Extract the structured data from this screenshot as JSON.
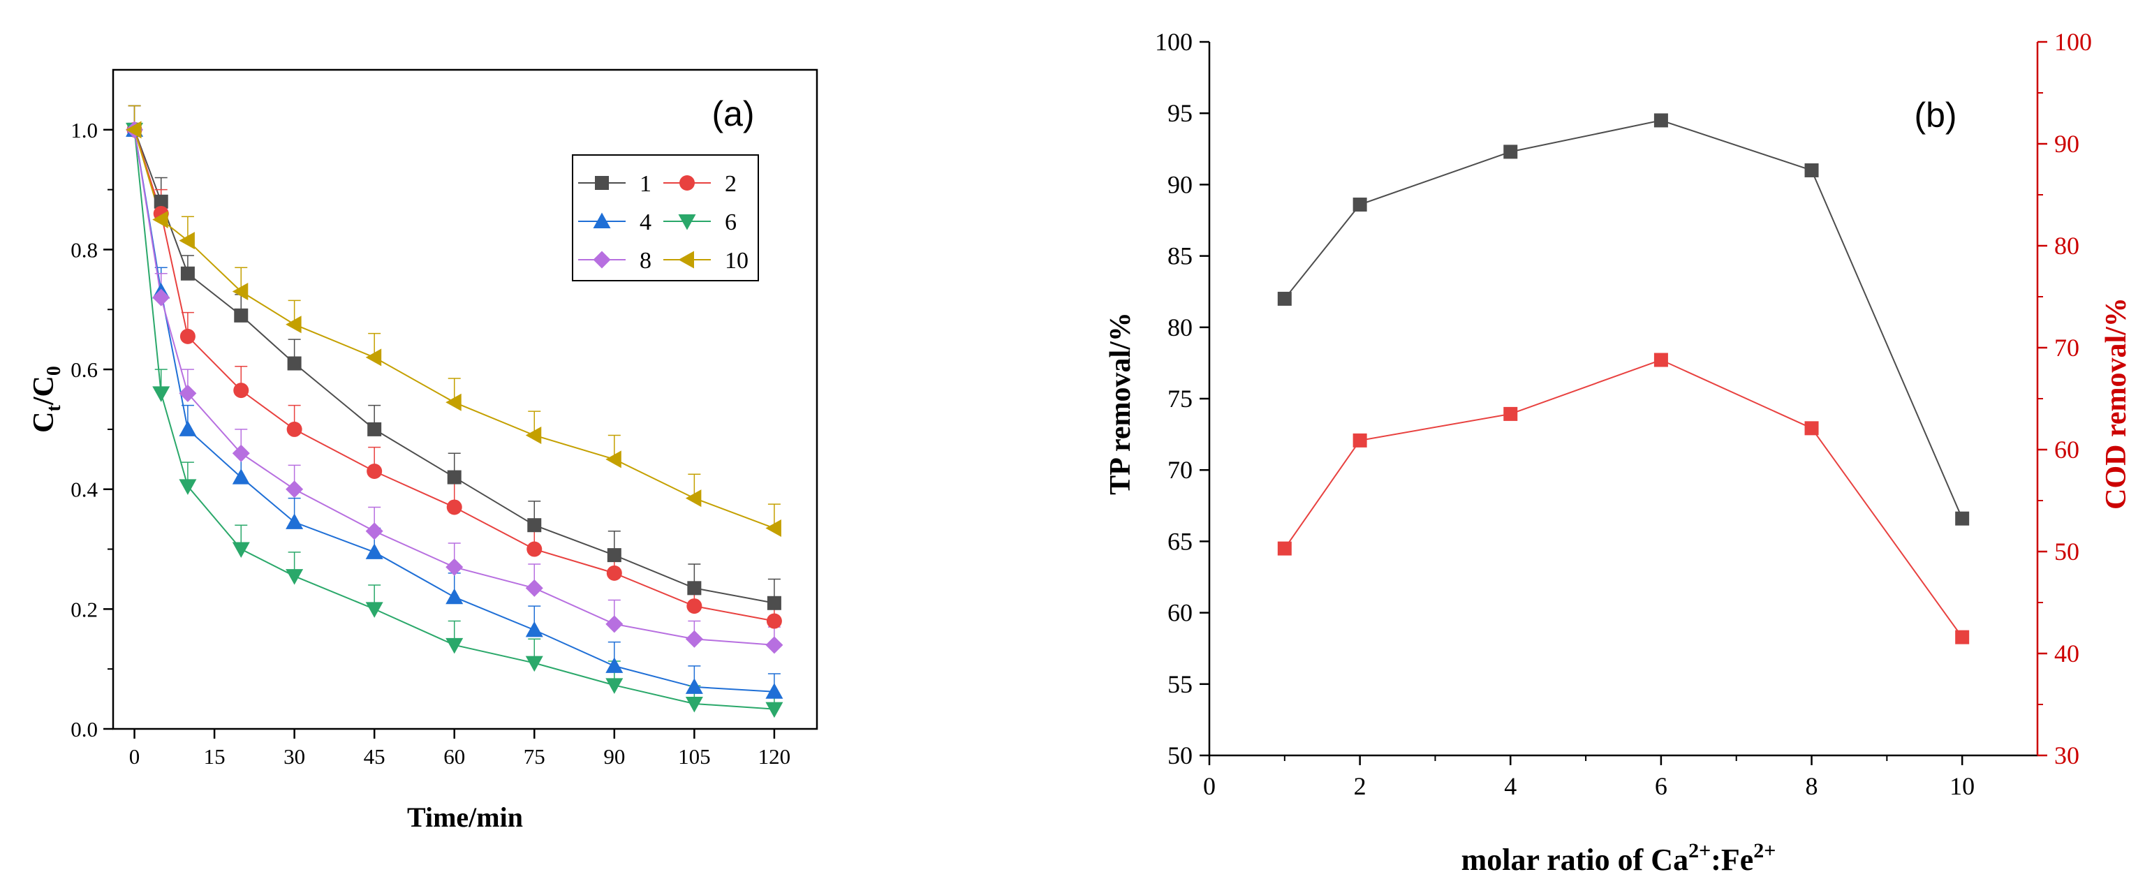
{
  "chart_data": [
    {
      "type": "line",
      "panel_label": "(a)",
      "title": "",
      "xlabel": "Time/min",
      "ylabel_main": "C",
      "ylabel_sub1": "t",
      "ylabel_mid": "/C",
      "ylabel_sub2": "0",
      "x": [
        0,
        5,
        10,
        20,
        30,
        45,
        60,
        75,
        90,
        105,
        120
      ],
      "x_ticks": [
        0,
        15,
        30,
        45,
        60,
        75,
        90,
        105,
        120
      ],
      "x_tick_labels": [
        "0",
        "15",
        "30",
        "45",
        "60",
        "75",
        "90",
        "105",
        "120"
      ],
      "y_ticks": [
        0.0,
        0.2,
        0.4,
        0.6,
        0.8,
        1.0
      ],
      "y_tick_labels": [
        "0.0",
        "0.2",
        "0.4",
        "0.6",
        "0.8",
        "1.0"
      ],
      "xlim": [
        -4,
        128
      ],
      "ylim": [
        0,
        1.1
      ],
      "legend_position": "top-right",
      "series": [
        {
          "name": "1",
          "color": "#4d4d4d",
          "marker": "square",
          "values": [
            1.0,
            0.88,
            0.76,
            0.69,
            0.61,
            0.5,
            0.42,
            0.34,
            0.29,
            0.235,
            0.21
          ],
          "errors": [
            0.04,
            0.04,
            0.03,
            0.035,
            0.04,
            0.04,
            0.04,
            0.04,
            0.04,
            0.04,
            0.04
          ]
        },
        {
          "name": "2",
          "color": "#e8413f",
          "marker": "circle",
          "values": [
            1.0,
            0.86,
            0.655,
            0.565,
            0.5,
            0.43,
            0.37,
            0.3,
            0.26,
            0.205,
            0.18
          ],
          "errors": [
            0.04,
            0.04,
            0.04,
            0.04,
            0.04,
            0.04,
            0.04,
            0.04,
            0.04,
            0.04,
            0.04
          ]
        },
        {
          "name": "4",
          "color": "#1f6fd6",
          "marker": "triangle-up",
          "values": [
            1.0,
            0.73,
            0.5,
            0.42,
            0.345,
            0.295,
            0.22,
            0.165,
            0.105,
            0.07,
            0.062
          ],
          "errors": [
            0.04,
            0.04,
            0.04,
            0.04,
            0.04,
            0.04,
            0.04,
            0.04,
            0.04,
            0.035,
            0.03
          ]
        },
        {
          "name": "6",
          "color": "#2aa86a",
          "marker": "triangle-down",
          "values": [
            1.0,
            0.56,
            0.405,
            0.3,
            0.255,
            0.2,
            0.14,
            0.11,
            0.073,
            0.042,
            0.033
          ],
          "errors": [
            0.04,
            0.04,
            0.04,
            0.04,
            0.04,
            0.04,
            0.04,
            0.04,
            0.04,
            0.03,
            0.02
          ]
        },
        {
          "name": "8",
          "color": "#b76fe0",
          "marker": "diamond",
          "values": [
            1.0,
            0.72,
            0.56,
            0.46,
            0.4,
            0.33,
            0.27,
            0.235,
            0.175,
            0.15,
            0.14
          ],
          "errors": [
            0.04,
            0.04,
            0.04,
            0.04,
            0.04,
            0.04,
            0.04,
            0.04,
            0.04,
            0.03,
            0.03
          ]
        },
        {
          "name": "10",
          "color": "#c4a000",
          "marker": "triangle-left",
          "values": [
            1.0,
            0.85,
            0.815,
            0.73,
            0.675,
            0.62,
            0.545,
            0.49,
            0.45,
            0.385,
            0.335
          ],
          "errors": [
            0.04,
            0.04,
            0.04,
            0.04,
            0.04,
            0.04,
            0.04,
            0.04,
            0.04,
            0.04,
            0.04
          ]
        }
      ]
    },
    {
      "type": "line",
      "panel_label": "(b)",
      "title": "",
      "xlabel_main": "molar ratio of Ca",
      "xlabel_sup1": "2+",
      "xlabel_mid": ":Fe",
      "xlabel_sup2": "2+",
      "ylabel_left": "TP removal/%",
      "ylabel_right": "COD removal/%",
      "x": [
        1,
        2,
        4,
        6,
        8,
        10
      ],
      "x_ticks": [
        0,
        2,
        4,
        6,
        8,
        10
      ],
      "x_tick_labels": [
        "0",
        "2",
        "4",
        "6",
        "8",
        "10"
      ],
      "xlim": [
        0,
        11
      ],
      "y_left_ticks": [
        50,
        55,
        60,
        65,
        70,
        75,
        80,
        85,
        90,
        95,
        100
      ],
      "y_left_tick_labels": [
        "50",
        "55",
        "60",
        "65",
        "70",
        "75",
        "80",
        "85",
        "90",
        "95",
        "100"
      ],
      "ylim_left": [
        50,
        100
      ],
      "y_right_ticks": [
        30,
        40,
        50,
        60,
        70,
        80,
        90,
        100
      ],
      "y_right_tick_labels": [
        "30",
        "40",
        "50",
        "60",
        "70",
        "80",
        "90",
        "100"
      ],
      "ylim_right": [
        30,
        100
      ],
      "right_axis_color": "#cc0000",
      "series": [
        {
          "name": "TP removal",
          "axis": "left",
          "color": "#4d4d4d",
          "marker": "square",
          "values": [
            82.0,
            88.6,
            92.3,
            94.5,
            91.0,
            66.6
          ]
        },
        {
          "name": "COD removal",
          "axis": "right",
          "color": "#e8413f",
          "marker": "square",
          "values": [
            50.3,
            60.9,
            63.5,
            68.8,
            62.1,
            41.6
          ]
        }
      ]
    }
  ]
}
